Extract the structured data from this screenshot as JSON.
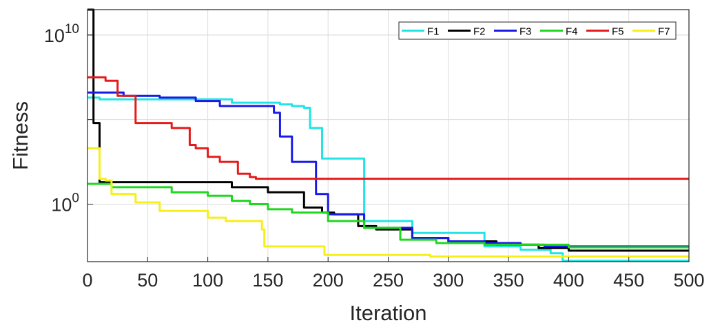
{
  "chart_data": {
    "type": "line",
    "title": "",
    "xlabel": "Iteration",
    "ylabel": "Fitness",
    "yscale": "log",
    "xlim": [
      0,
      500
    ],
    "ylim_exp": [
      -3.4,
      11.5
    ],
    "grid": true,
    "legend_position": "top-right",
    "legend_columns": 6,
    "x_ticks": [
      "0",
      "50",
      "100",
      "150",
      "200",
      "250",
      "300",
      "350",
      "400",
      "450",
      "500"
    ],
    "y_ticks": [
      {
        "base": "10",
        "exponent": "10",
        "value_exp": 10
      },
      {
        "base": "10",
        "exponent": "0",
        "value_exp": 0
      }
    ],
    "series": [
      {
        "name": "F1",
        "color": "#22e4e4",
        "points": [
          [
            0,
            6.3
          ],
          [
            10,
            6.3
          ],
          [
            10,
            6.2
          ],
          [
            115,
            6.2
          ],
          [
            120,
            6.0
          ],
          [
            160,
            5.9
          ],
          [
            170,
            5.8
          ],
          [
            180,
            5.7
          ],
          [
            185,
            4.5
          ],
          [
            195,
            2.7
          ],
          [
            230,
            -1.0
          ],
          [
            270,
            -1.7
          ],
          [
            330,
            -2.5
          ],
          [
            360,
            -2.7
          ],
          [
            385,
            -2.9
          ],
          [
            395,
            -3.35
          ],
          [
            500,
            -3.35
          ]
        ]
      },
      {
        "name": "F2",
        "color": "#000000",
        "points": [
          [
            0,
            11.5
          ],
          [
            3,
            11.5
          ],
          [
            5,
            4.8
          ],
          [
            8,
            4.8
          ],
          [
            10,
            1.3
          ],
          [
            110,
            1.3
          ],
          [
            120,
            1.0
          ],
          [
            150,
            0.7
          ],
          [
            180,
            -0.2
          ],
          [
            195,
            -0.5
          ],
          [
            205,
            -0.6
          ],
          [
            225,
            -1.3
          ],
          [
            240,
            -1.5
          ],
          [
            270,
            -2.0
          ],
          [
            300,
            -2.2
          ],
          [
            340,
            -2.4
          ],
          [
            375,
            -2.6
          ],
          [
            400,
            -2.75
          ],
          [
            500,
            -2.75
          ]
        ]
      },
      {
        "name": "F3",
        "color": "#1a1ae6",
        "points": [
          [
            0,
            6.6
          ],
          [
            15,
            6.6
          ],
          [
            30,
            6.4
          ],
          [
            60,
            6.3
          ],
          [
            90,
            6.1
          ],
          [
            110,
            5.8
          ],
          [
            150,
            5.8
          ],
          [
            155,
            5.4
          ],
          [
            160,
            4.0
          ],
          [
            170,
            2.5
          ],
          [
            190,
            0.6
          ],
          [
            200,
            -0.6
          ],
          [
            230,
            -1.4
          ],
          [
            270,
            -2.0
          ],
          [
            300,
            -2.2
          ],
          [
            330,
            -2.3
          ],
          [
            360,
            -2.4
          ],
          [
            380,
            -2.5
          ],
          [
            410,
            -2.5
          ],
          [
            500,
            -2.5
          ]
        ]
      },
      {
        "name": "F4",
        "color": "#1fd71f",
        "points": [
          [
            0,
            1.2
          ],
          [
            10,
            1.2
          ],
          [
            20,
            1.0
          ],
          [
            70,
            0.7
          ],
          [
            100,
            0.5
          ],
          [
            120,
            0.2
          ],
          [
            135,
            0.0
          ],
          [
            150,
            -0.3
          ],
          [
            170,
            -0.5
          ],
          [
            200,
            -1.0
          ],
          [
            230,
            -1.4
          ],
          [
            260,
            -2.1
          ],
          [
            290,
            -2.3
          ],
          [
            330,
            -2.4
          ],
          [
            360,
            -2.4
          ],
          [
            400,
            -2.55
          ],
          [
            500,
            -2.55
          ]
        ]
      },
      {
        "name": "F5",
        "color": "#e61a1a",
        "points": [
          [
            0,
            7.5
          ],
          [
            3,
            7.5
          ],
          [
            15,
            7.3
          ],
          [
            25,
            6.4
          ],
          [
            40,
            4.8
          ],
          [
            70,
            4.5
          ],
          [
            85,
            3.5
          ],
          [
            90,
            3.3
          ],
          [
            100,
            2.8
          ],
          [
            110,
            2.5
          ],
          [
            125,
            1.8
          ],
          [
            135,
            1.6
          ],
          [
            140,
            1.5
          ],
          [
            500,
            1.5
          ]
        ]
      },
      {
        "name": "F7",
        "color": "#f5ef1a",
        "points": [
          [
            0,
            3.3
          ],
          [
            3,
            3.3
          ],
          [
            10,
            1.5
          ],
          [
            15,
            1.4
          ],
          [
            20,
            0.6
          ],
          [
            40,
            0.1
          ],
          [
            60,
            -0.4
          ],
          [
            100,
            -0.8
          ],
          [
            115,
            -1.0
          ],
          [
            145,
            -1.5
          ],
          [
            147,
            -2.5
          ],
          [
            195,
            -2.5
          ],
          [
            197,
            -3.0
          ],
          [
            280,
            -3.0
          ],
          [
            285,
            -3.1
          ],
          [
            350,
            -3.1
          ],
          [
            500,
            -3.1
          ]
        ]
      }
    ]
  }
}
